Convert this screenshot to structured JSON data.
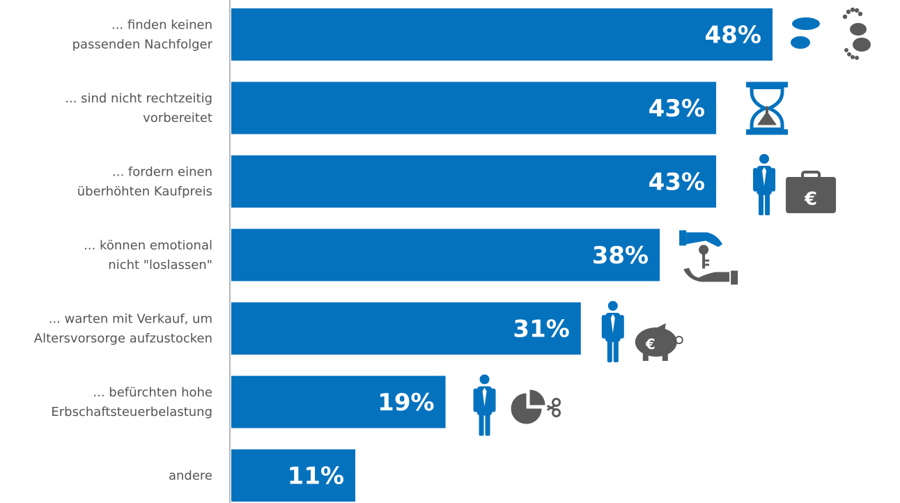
{
  "colors": {
    "bar": "#0572BE",
    "icon_blue": "#0572BE",
    "icon_gray": "#5A5A5A",
    "axis": "#B5B5B5",
    "label": "#555555"
  },
  "chart_data": {
    "type": "bar",
    "orientation": "horizontal",
    "title": "",
    "xlabel": "",
    "ylabel": "",
    "xlim": [
      0,
      48
    ],
    "grid": false,
    "legend": "none",
    "categories": [
      [
        "... finden keinen",
        "passenden Nachfolger"
      ],
      [
        "... sind nicht rechtzeitig",
        "vorbereitet"
      ],
      [
        "... fordern einen",
        "überhöhten Kaufpreis"
      ],
      [
        "... können emotional",
        "nicht \"loslassen\""
      ],
      [
        "... warten mit Verkauf, um",
        "Altersvorsorge aufzustocken"
      ],
      [
        "... befürchten hohe",
        "Erbschaftsteuerbelastung"
      ],
      [
        "andere"
      ]
    ],
    "values": [
      48,
      43,
      43,
      38,
      31,
      19,
      11
    ],
    "value_labels": [
      "48%",
      "43%",
      "43%",
      "38%",
      "31%",
      "19%",
      "11%"
    ],
    "icons": [
      "footprints-icon",
      "hourglass-icon",
      "businessman-euro-briefcase-icon",
      "hand-key-hand-icon",
      "businessman-piggy-bank-icon",
      "businessman-pie-chart-scissors-icon",
      ""
    ]
  }
}
